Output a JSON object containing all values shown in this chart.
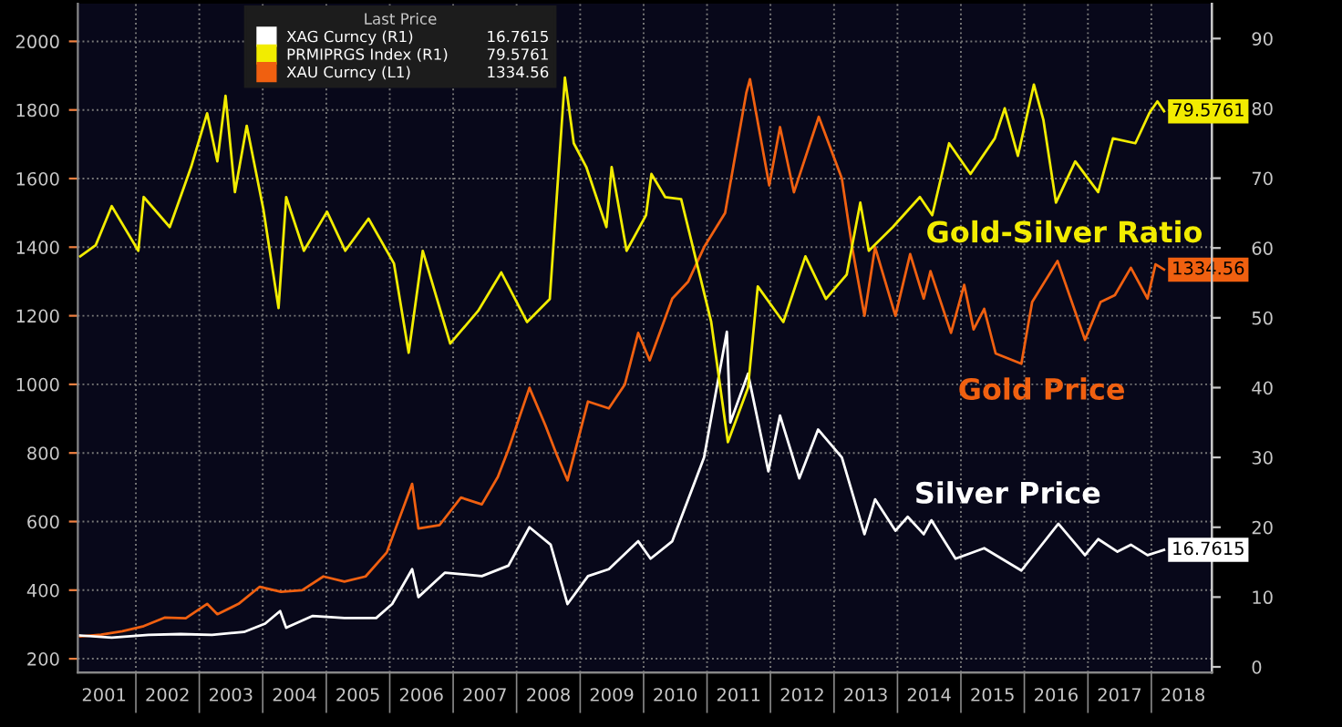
{
  "chart_data": {
    "type": "line",
    "legend_title": "Last Price",
    "legend": "top",
    "grid": true,
    "annotations": [
      "Gold-Silver Ratio",
      "Gold Price",
      "Silver Price"
    ],
    "xlim": [
      "2001-02-01",
      "2018-12-15"
    ],
    "xticks": [
      {
        "value": "2002-01-01",
        "label": null
      },
      {
        "value": "2003-01-01",
        "label": null
      },
      {
        "value": "2004-01-01",
        "label": null
      },
      {
        "value": "2005-01-01",
        "label": null
      },
      {
        "value": "2006-01-01",
        "label": null
      },
      {
        "value": "2007-01-01",
        "label": null
      },
      {
        "value": "2008-01-01",
        "label": null
      },
      {
        "value": "2009-01-01",
        "label": null
      },
      {
        "value": "2010-01-01",
        "label": null
      },
      {
        "value": "2011-01-01",
        "label": null
      },
      {
        "value": "2012-01-01",
        "label": null
      },
      {
        "value": "2013-01-01",
        "label": null
      },
      {
        "value": "2014-01-01",
        "label": null
      },
      {
        "value": "2015-01-01",
        "label": null
      },
      {
        "value": "2016-01-01",
        "label": null
      },
      {
        "value": "2017-01-01",
        "label": null
      },
      {
        "value": "2018-01-01",
        "label": null
      },
      {
        "value": "2001-07-02",
        "label": "2001"
      },
      {
        "value": "2002-07-02",
        "label": "2002"
      },
      {
        "value": "2003-07-02",
        "label": "2003"
      },
      {
        "value": "2004-07-02",
        "label": "2004"
      },
      {
        "value": "2005-07-02",
        "label": "2005"
      },
      {
        "value": "2006-07-02",
        "label": "2006"
      },
      {
        "value": "2007-07-02",
        "label": "2007"
      },
      {
        "value": "2008-07-02",
        "label": "2008"
      },
      {
        "value": "2009-07-02",
        "label": "2009"
      },
      {
        "value": "2010-07-02",
        "label": "2010"
      },
      {
        "value": "2011-07-02",
        "label": "2011"
      },
      {
        "value": "2012-07-02",
        "label": "2012"
      },
      {
        "value": "2013-07-02",
        "label": "2013"
      },
      {
        "value": "2014-07-02",
        "label": "2014"
      },
      {
        "value": "2015-07-02",
        "label": "2015"
      },
      {
        "value": "2016-07-02",
        "label": "2016"
      },
      {
        "value": "2017-07-02",
        "label": "2017"
      },
      {
        "value": "2018-07-02",
        "label": "2018"
      }
    ],
    "ylim": [
      160,
      2110
    ],
    "yticks": [
      200,
      400,
      600,
      800,
      1000,
      1200,
      1400,
      1600,
      1800,
      2000
    ],
    "y2lim": [
      -0.8,
      95
    ],
    "y2ticks": [
      0,
      10,
      20,
      30,
      40,
      50,
      60,
      70,
      80,
      90
    ],
    "series": [
      {
        "name": "XAG Curncy (R1)",
        "color": "#ffffff",
        "axis": "y2",
        "x": [
          "2001-02-15",
          "2001-08-15",
          "2002-03-15",
          "2002-09-15",
          "2003-03-15",
          "2003-09-15",
          "2004-01-15",
          "2004-04-10",
          "2004-05-15",
          "2004-10-15",
          "2005-04-15",
          "2005-10-15",
          "2006-01-15",
          "2006-05-10",
          "2006-06-15",
          "2006-11-15",
          "2007-06-15",
          "2007-11-15",
          "2008-03-15",
          "2008-07-15",
          "2008-10-20",
          "2009-02-15",
          "2009-06-15",
          "2009-12-01",
          "2010-02-10",
          "2010-06-15",
          "2010-12-15",
          "2011-04-25",
          "2011-05-15",
          "2011-08-25",
          "2011-12-20",
          "2012-02-25",
          "2012-06-15",
          "2012-10-01",
          "2013-02-15",
          "2013-06-25",
          "2013-08-25",
          "2013-12-20",
          "2014-03-01",
          "2014-06-01",
          "2014-07-15",
          "2014-12-01",
          "2015-05-15",
          "2015-12-15",
          "2016-07-15",
          "2016-12-15",
          "2017-03-01",
          "2017-06-20",
          "2017-09-05",
          "2017-12-10",
          "2018-03-15"
        ],
        "values": [
          4.5,
          4.2,
          4.6,
          4.7,
          4.6,
          5.0,
          6.2,
          8.0,
          5.6,
          7.3,
          7.0,
          7.0,
          9.0,
          14.0,
          10.0,
          13.5,
          13.0,
          14.5,
          20.0,
          17.5,
          9.0,
          13.0,
          14.0,
          18.0,
          15.5,
          18.0,
          30.0,
          48.0,
          35.0,
          42.0,
          28.0,
          36.0,
          27.0,
          34.0,
          30.0,
          19.0,
          24.0,
          19.5,
          21.5,
          19.0,
          21.0,
          15.5,
          17.0,
          13.8,
          20.5,
          16.0,
          18.3,
          16.5,
          17.5,
          16.0,
          16.7615
        ],
        "value_labels": [
          null,
          null,
          null,
          null,
          null,
          null,
          null,
          null,
          null,
          null,
          null,
          null,
          null,
          null,
          null,
          null,
          null,
          null,
          null,
          null,
          null,
          null,
          null,
          null,
          null,
          null,
          null,
          null,
          null,
          null,
          null,
          null,
          null,
          null,
          null,
          null,
          null,
          null,
          null,
          null,
          null,
          null,
          null,
          null,
          null,
          null,
          null,
          null,
          null,
          null,
          "16.7615"
        ]
      },
      {
        "name": "PRMIPRGS Index (R1)",
        "color": "#f2ec00",
        "axis": "y2",
        "x": [
          "2001-02-15",
          "2001-05-15",
          "2001-08-15",
          "2002-01-15",
          "2002-02-15",
          "2002-07-15",
          "2002-11-15",
          "2003-02-15",
          "2003-04-15",
          "2003-06-01",
          "2003-07-25",
          "2003-10-01",
          "2004-01-05",
          "2004-04-01",
          "2004-05-15",
          "2004-08-25",
          "2005-01-05",
          "2005-04-20",
          "2005-09-01",
          "2006-01-25",
          "2006-04-20",
          "2006-07-10",
          "2006-12-15",
          "2007-05-25",
          "2007-10-05",
          "2008-03-01",
          "2008-07-10",
          "2008-10-05",
          "2008-11-25",
          "2009-02-05",
          "2009-06-01",
          "2009-07-01",
          "2009-09-25",
          "2010-01-15",
          "2010-02-15",
          "2010-05-05",
          "2010-08-05",
          "2011-01-25",
          "2011-05-01",
          "2011-08-25",
          "2011-10-20",
          "2012-03-15",
          "2012-07-20",
          "2012-11-15",
          "2013-03-15",
          "2013-06-01",
          "2013-07-20",
          "2013-12-05",
          "2014-05-10",
          "2014-07-20",
          "2014-10-25",
          "2015-02-25",
          "2015-07-15",
          "2015-09-10",
          "2015-11-25",
          "2016-02-25",
          "2016-04-20",
          "2016-07-01",
          "2016-10-20",
          "2017-03-01",
          "2017-05-25",
          "2017-10-01",
          "2017-12-20",
          "2018-02-05",
          "2018-03-15"
        ],
        "values": [
          58.8,
          60.4,
          66.0,
          59.6,
          67.3,
          63.0,
          71.6,
          79.3,
          72.4,
          81.8,
          68.0,
          77.5,
          65.5,
          51.4,
          67.3,
          59.6,
          65.2,
          59.6,
          64.2,
          57.8,
          45.0,
          59.6,
          46.3,
          51.0,
          56.5,
          49.4,
          52.7,
          84.4,
          75.0,
          71.6,
          63.0,
          71.6,
          59.6,
          64.7,
          70.6,
          67.3,
          67.0,
          49.4,
          32.2,
          40.0,
          54.5,
          49.4,
          58.8,
          52.7,
          56.2,
          66.5,
          59.6,
          63.0,
          67.3,
          64.7,
          75.0,
          70.6,
          75.7,
          80.0,
          73.2,
          83.4,
          78.3,
          66.5,
          72.4,
          68.0,
          75.7,
          75.0,
          79.3,
          81.0,
          79.5761
        ],
        "value_labels": [
          null,
          null,
          null,
          null,
          null,
          null,
          null,
          null,
          null,
          null,
          null,
          null,
          null,
          null,
          null,
          null,
          null,
          null,
          null,
          null,
          null,
          null,
          null,
          null,
          null,
          null,
          null,
          null,
          null,
          null,
          null,
          null,
          null,
          null,
          null,
          null,
          null,
          null,
          null,
          null,
          null,
          null,
          null,
          null,
          null,
          null,
          null,
          null,
          null,
          null,
          null,
          null,
          null,
          null,
          null,
          null,
          null,
          null,
          null,
          null,
          null,
          null,
          null,
          null,
          "79.5761"
        ]
      },
      {
        "name": "XAU Curncy (L1)",
        "color": "#f06010",
        "axis": "y",
        "x": [
          "2001-02-15",
          "2001-06-15",
          "2001-10-15",
          "2002-02-15",
          "2002-06-15",
          "2002-10-15",
          "2003-02-15",
          "2003-04-15",
          "2003-08-15",
          "2003-12-15",
          "2004-04-15",
          "2004-08-15",
          "2004-12-15",
          "2005-04-15",
          "2005-08-15",
          "2005-12-15",
          "2006-05-10",
          "2006-06-15",
          "2006-10-15",
          "2007-02-15",
          "2007-06-15",
          "2007-09-15",
          "2007-11-15",
          "2008-03-15",
          "2008-06-15",
          "2008-08-15",
          "2008-10-20",
          "2009-02-15",
          "2009-06-15",
          "2009-09-15",
          "2009-12-01",
          "2010-02-05",
          "2010-06-15",
          "2010-09-15",
          "2010-12-15",
          "2011-04-15",
          "2011-08-15",
          "2011-09-05",
          "2011-12-25",
          "2012-02-25",
          "2012-05-15",
          "2012-10-05",
          "2013-02-15",
          "2013-04-15",
          "2013-06-25",
          "2013-08-25",
          "2013-12-20",
          "2014-03-15",
          "2014-06-01",
          "2014-07-10",
          "2014-11-05",
          "2015-01-20",
          "2015-03-15",
          "2015-05-15",
          "2015-07-20",
          "2015-12-15",
          "2016-02-15",
          "2016-07-10",
          "2016-12-15",
          "2017-03-15",
          "2017-06-05",
          "2017-09-05",
          "2017-12-10",
          "2018-01-25",
          "2018-03-15"
        ],
        "values": [
          265,
          270,
          280,
          295,
          320,
          318,
          360,
          330,
          360,
          410,
          395,
          400,
          440,
          425,
          440,
          510,
          710,
          580,
          590,
          670,
          650,
          730,
          810,
          990,
          880,
          800,
          720,
          950,
          930,
          1000,
          1150,
          1070,
          1250,
          1300,
          1400,
          1500,
          1850,
          1890,
          1580,
          1750,
          1560,
          1780,
          1600,
          1400,
          1200,
          1400,
          1200,
          1380,
          1250,
          1330,
          1150,
          1290,
          1160,
          1220,
          1090,
          1060,
          1240,
          1360,
          1130,
          1240,
          1260,
          1340,
          1250,
          1350,
          1334.56
        ],
        "value_labels": [
          null,
          null,
          null,
          null,
          null,
          null,
          null,
          null,
          null,
          null,
          null,
          null,
          null,
          null,
          null,
          null,
          null,
          null,
          null,
          null,
          null,
          null,
          null,
          null,
          null,
          null,
          null,
          null,
          null,
          null,
          null,
          null,
          null,
          null,
          null,
          null,
          null,
          null,
          null,
          null,
          null,
          null,
          null,
          null,
          null,
          null,
          null,
          null,
          null,
          null,
          null,
          null,
          null,
          null,
          null,
          null,
          null,
          null,
          null,
          null,
          null,
          null,
          null,
          null,
          "1334.56"
        ]
      }
    ]
  }
}
